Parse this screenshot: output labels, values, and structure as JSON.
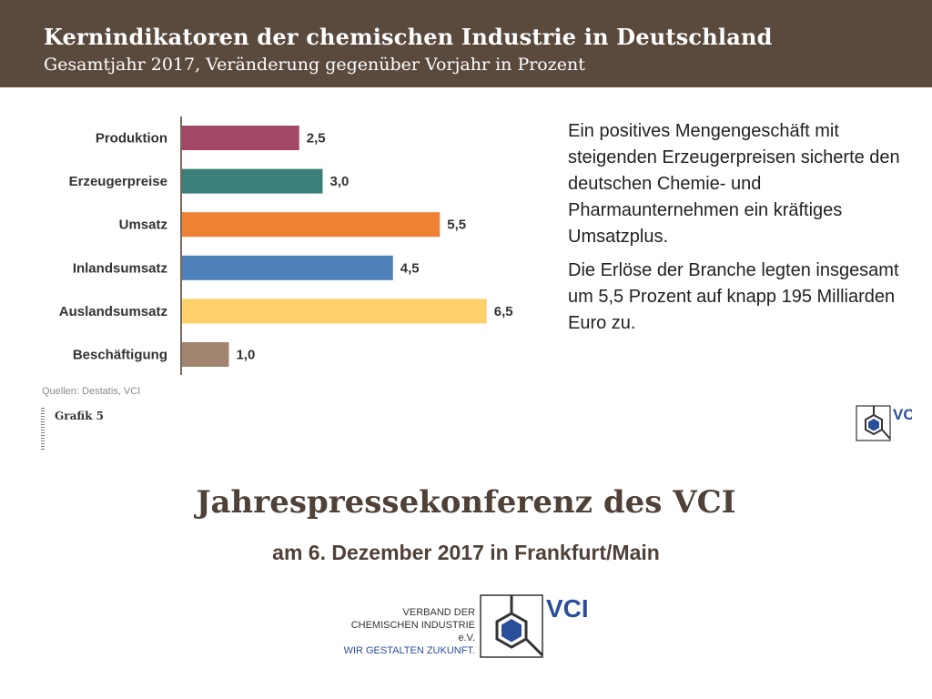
{
  "header": {
    "title": "Kernindikatoren der chemischen Industrie in Deutschland",
    "subtitle": "Gesamtjahr 2017, Veränderung gegenüber Vorjahr in Prozent"
  },
  "chart_data": {
    "type": "bar",
    "orientation": "horizontal",
    "title": "Kernindikatoren der chemischen Industrie in Deutschland",
    "subtitle": "Gesamtjahr 2017, Veränderung gegenüber Vorjahr in Prozent",
    "xlabel": "",
    "ylabel": "",
    "categories": [
      "Produktion",
      "Erzeugerpreise",
      "Umsatz",
      "Inlandsumsatz",
      "Auslandsumsatz",
      "Beschäftigung"
    ],
    "values": [
      2.5,
      3.0,
      5.5,
      4.5,
      6.5,
      1.0
    ],
    "value_labels": [
      "2,5",
      "3,0",
      "5,5",
      "4,5",
      "6,5",
      "1,0"
    ],
    "colors": [
      "#a34769",
      "#3a7f78",
      "#ef8232",
      "#4e81b9",
      "#fdd06a",
      "#a08470"
    ],
    "xlim": [
      0,
      6.5
    ],
    "grid": false,
    "legend": "none"
  },
  "description": {
    "p1": "Ein positives Mengengeschäft mit steigenden Erzeugerpreisen sicherte den deutschen Chemie- und Pharmaunternehmen ein kräftiges Umsatzplus.",
    "p2": "Die Erlöse der Branche legten insgesamt um 5,5 Prozent auf knapp 195 Milliarden Euro zu."
  },
  "source": "Quellen: Destatis, VCI",
  "figure_label": "Grafik 5",
  "conference": {
    "title": "Jahrespressekonferenz des VCI",
    "date": "am 6. Dezember 2017 in Frankfurt/Main"
  },
  "logo": {
    "line1": "VERBAND DER",
    "line2": "CHEMISCHEN INDUSTRIE e.V.",
    "line3": "WIR GESTALTEN ZUKUNFT.",
    "brand": "VCI",
    "brand_color": "#2a4f9a"
  }
}
